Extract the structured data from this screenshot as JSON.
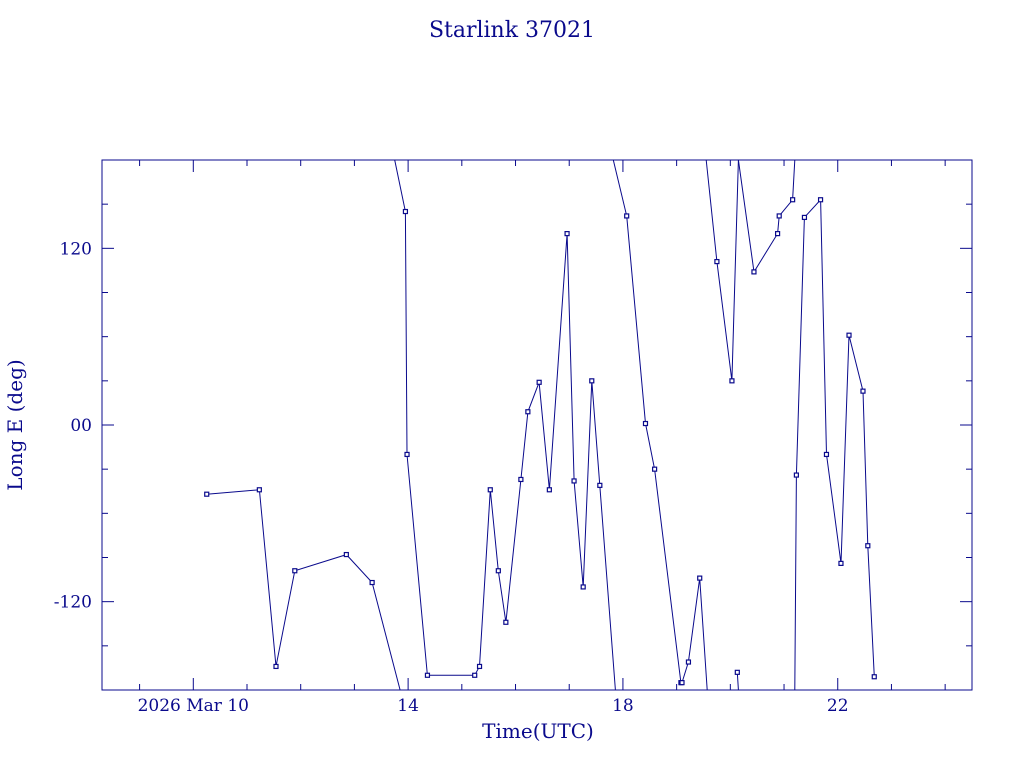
{
  "chart_data": {
    "type": "line",
    "title": "Starlink 37021",
    "xlabel": "Time(UTC)",
    "ylabel": "Long E (deg)",
    "x_unit": "hours UTC on 2026 Mar 10",
    "xlim": [
      8.3,
      24.5
    ],
    "ylim": [
      -180,
      180
    ],
    "xticks": [
      {
        "value": 10,
        "label": "2026 Mar 10"
      },
      {
        "value": 14,
        "label": "14"
      },
      {
        "value": 18,
        "label": "18"
      },
      {
        "value": 22,
        "label": "22"
      }
    ],
    "yticks": [
      {
        "value": 120,
        "label": "120"
      },
      {
        "value": 0,
        "label": "00"
      },
      {
        "value": -120,
        "label": "-120"
      }
    ],
    "grid": false,
    "line_color": "#0a0a8c",
    "segments": [
      [
        {
          "x": 10.25,
          "y": -47
        },
        {
          "x": 11.23,
          "y": -44
        },
        {
          "x": 11.54,
          "y": -164
        },
        {
          "x": 11.89,
          "y": -99
        },
        {
          "x": 12.85,
          "y": -88
        },
        {
          "x": 13.33,
          "y": -107
        },
        {
          "x": 13.85,
          "y": -180
        }
      ],
      [
        {
          "x": 13.75,
          "y": 180
        },
        {
          "x": 13.95,
          "y": 145
        },
        {
          "x": 13.98,
          "y": -20
        },
        {
          "x": 14.36,
          "y": -170
        },
        {
          "x": 15.24,
          "y": -170
        },
        {
          "x": 15.33,
          "y": -164
        },
        {
          "x": 15.53,
          "y": -44
        },
        {
          "x": 15.68,
          "y": -99
        },
        {
          "x": 15.82,
          "y": -134
        },
        {
          "x": 16.1,
          "y": -37
        },
        {
          "x": 16.23,
          "y": 9
        },
        {
          "x": 16.44,
          "y": 29
        },
        {
          "x": 16.63,
          "y": -44
        },
        {
          "x": 16.96,
          "y": 130
        },
        {
          "x": 17.09,
          "y": -38
        },
        {
          "x": 17.26,
          "y": -110
        },
        {
          "x": 17.42,
          "y": 30
        },
        {
          "x": 17.57,
          "y": -41
        },
        {
          "x": 17.86,
          "y": -180
        }
      ],
      [
        {
          "x": 17.82,
          "y": 180
        },
        {
          "x": 18.07,
          "y": 142
        },
        {
          "x": 18.42,
          "y": 1
        },
        {
          "x": 18.59,
          "y": -30
        },
        {
          "x": 19.08,
          "y": -175
        }
      ],
      [
        {
          "x": 19.1,
          "y": -175
        },
        {
          "x": 19.22,
          "y": -161
        },
        {
          "x": 19.43,
          "y": -104
        },
        {
          "x": 19.57,
          "y": -180
        }
      ],
      [
        {
          "x": 19.55,
          "y": 180
        },
        {
          "x": 19.75,
          "y": 111
        },
        {
          "x": 20.03,
          "y": 30
        },
        {
          "x": 20.15,
          "y": 180
        }
      ],
      [
        {
          "x": 20.13,
          "y": -168
        },
        {
          "x": 20.15,
          "y": -180
        }
      ],
      [
        {
          "x": 20.15,
          "y": 180
        },
        {
          "x": 20.44,
          "y": 104
        },
        {
          "x": 20.88,
          "y": 130
        },
        {
          "x": 20.91,
          "y": 142
        },
        {
          "x": 21.16,
          "y": 153
        },
        {
          "x": 21.2,
          "y": 180
        }
      ],
      [
        {
          "x": 21.2,
          "y": -180
        },
        {
          "x": 21.23,
          "y": -34
        },
        {
          "x": 21.38,
          "y": 141
        },
        {
          "x": 21.68,
          "y": 153
        },
        {
          "x": 21.79,
          "y": -20
        },
        {
          "x": 22.06,
          "y": -94
        },
        {
          "x": 22.21,
          "y": 61
        },
        {
          "x": 22.47,
          "y": 23
        },
        {
          "x": 22.56,
          "y": -82
        },
        {
          "x": 22.68,
          "y": -171
        }
      ]
    ]
  }
}
